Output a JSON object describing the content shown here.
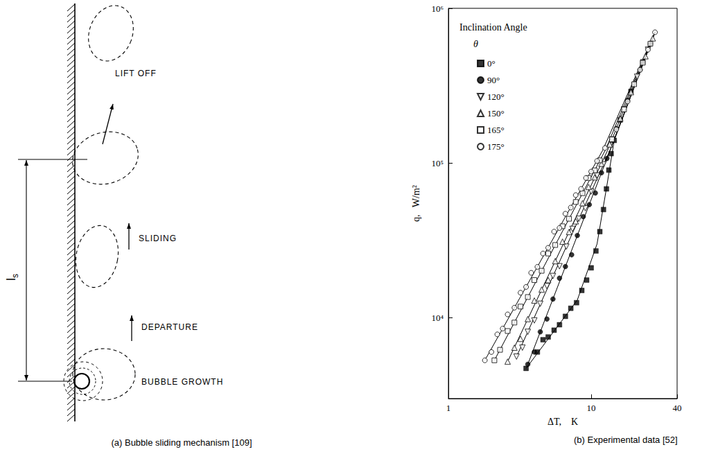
{
  "diagram": {
    "caption": "(a) Bubble sliding mechanism [109]",
    "labels": {
      "lift_off": "LIFT OFF",
      "sliding": "SLIDING",
      "departure": "DEPARTURE",
      "growth": "BUBBLE GROWTH"
    },
    "length_symbol": "l",
    "length_subscript": "s"
  },
  "chart_data": {
    "type": "scatter",
    "caption": "(b) Experimental data [52]",
    "legend_title": "Inclination Angle",
    "legend_subtitle": "θ",
    "x_label": "ΔT,    K",
    "y_label": "q,   W/m²",
    "log": true,
    "grid": false,
    "legend": "upper left",
    "xlim": [
      1,
      40
    ],
    "xticks": [
      1,
      10,
      40
    ],
    "ylim": [
      3000,
      1000000
    ],
    "yticks": [
      {
        "value": 10000,
        "label": "10⁴"
      },
      {
        "value": 100000,
        "label": "10⁵"
      },
      {
        "value": 1000000,
        "label": "10⁶"
      }
    ],
    "series": [
      {
        "name": "0°",
        "color": "#000000",
        "marker": "filled_square",
        "line_style": "solid",
        "x": [
          3.5,
          4.2,
          4.6,
          5.0,
          5.5,
          6.0,
          6.6,
          7.2,
          7.9,
          8.6,
          9.3,
          10.0,
          10.8,
          11.5,
          12.2,
          12.8,
          13.3,
          13.8,
          14.5,
          16,
          19,
          23
        ],
        "values": [
          4700,
          6000,
          7200,
          7500,
          8300,
          9000,
          10200,
          11500,
          12500,
          15000,
          17500,
          21000,
          27000,
          36000,
          50000,
          68000,
          90000,
          115000,
          140000,
          190000,
          290000,
          450000
        ],
        "fit": {
          "x": [
            3.5,
            8,
            11,
            13,
            14.5,
            28
          ],
          "values": [
            4700,
            13000,
            30000,
            75000,
            140000,
            700000
          ]
        }
      },
      {
        "name": "90°",
        "color": "#000000",
        "marker": "filled_circle",
        "line_style": "solid",
        "x": [
          3.6,
          4.0,
          4.4,
          4.9,
          5.4,
          6.0,
          6.6,
          7.3,
          8.0,
          8.8,
          9.7,
          10.7,
          11.8,
          12.9,
          15,
          18,
          22,
          26
        ],
        "values": [
          5000,
          6000,
          8100,
          9800,
          13200,
          18000,
          21400,
          25500,
          34000,
          45000,
          53800,
          64000,
          86500,
          107000,
          167000,
          254000,
          400000,
          590000
        ],
        "fit": {
          "x": [
            3.6,
            14,
            28
          ],
          "values": [
            5000,
            130000,
            700000
          ]
        }
      },
      {
        "name": "120°",
        "color": "#000000",
        "marker": "open_triangle_down",
        "line_style": "solid",
        "x": [
          3.0,
          3.3,
          3.6,
          4.0,
          4.4,
          4.9,
          5.4,
          6.0,
          6.7,
          7.4,
          8.2,
          9.1,
          10.0,
          11.0,
          12.2,
          14,
          17,
          21,
          25
        ],
        "values": [
          5600,
          6400,
          8100,
          9600,
          12300,
          16000,
          18600,
          21500,
          28800,
          37500,
          43600,
          51000,
          65400,
          83000,
          98000,
          142000,
          222000,
          361000,
          540000
        ],
        "fit": {
          "x": [
            3.0,
            13.5,
            28
          ],
          "values": [
            5600,
            120000,
            700000
          ]
        }
      },
      {
        "name": "150°",
        "color": "#000000",
        "marker": "open_triangle_up",
        "line_style": "solid",
        "x": [
          2.6,
          2.9,
          3.2,
          3.6,
          4.0,
          4.5,
          5.0,
          5.6,
          6.3,
          7.0,
          7.8,
          8.7,
          9.6,
          10.6,
          11.8,
          13.5,
          16,
          19,
          24,
          27
        ],
        "values": [
          5200,
          6400,
          7300,
          9800,
          12900,
          15200,
          17500,
          23200,
          31000,
          35800,
          42000,
          55000,
          70000,
          80800,
          98900,
          132000,
          194000,
          287000,
          490000,
          640000
        ],
        "fit": {
          "x": [
            2.6,
            13,
            28
          ],
          "values": [
            5200,
            120000,
            700000
          ]
        }
      },
      {
        "name": "165°",
        "color": "#000000",
        "marker": "open_square",
        "line_style": "solid",
        "x": [
          2.1,
          2.3,
          2.6,
          2.9,
          3.2,
          3.6,
          4.0,
          4.5,
          5.0,
          5.6,
          6.3,
          7.0,
          7.8,
          8.7,
          9.6,
          10.6,
          11.5,
          14,
          17,
          20,
          23,
          26
        ],
        "values": [
          5300,
          6200,
          8200,
          9300,
          11800,
          13600,
          17500,
          20100,
          26000,
          29500,
          39000,
          43600,
          56000,
          63800,
          80000,
          89600,
          104000,
          142000,
          222000,
          323000,
          445000,
          590000
        ],
        "fit": {
          "x": [
            2.1,
            12.5,
            28
          ],
          "values": [
            5300,
            120000,
            700000
          ]
        }
      },
      {
        "name": "175°",
        "color": "#000000",
        "marker": "open_circle",
        "line_style": "solid",
        "x": [
          1.8,
          2.0,
          2.2,
          2.4,
          2.6,
          2.9,
          3.2,
          3.5,
          3.8,
          4.2,
          4.6,
          5.0,
          5.5,
          6.0,
          6.6,
          7.2,
          7.8,
          8.5,
          9.2,
          10,
          11,
          12.5,
          15,
          18,
          22,
          25,
          28
        ],
        "values": [
          5300,
          6000,
          7800,
          8500,
          10500,
          11600,
          14500,
          15800,
          19500,
          21300,
          26000,
          28300,
          36000,
          38000,
          47000,
          51500,
          62000,
          68000,
          80000,
          88000,
          103000,
          125000,
          165000,
          250000,
          400000,
          540000,
          700000
        ],
        "fit": {
          "x": [
            1.8,
            12,
            28
          ],
          "values": [
            5300,
            120000,
            700000
          ]
        }
      }
    ]
  }
}
